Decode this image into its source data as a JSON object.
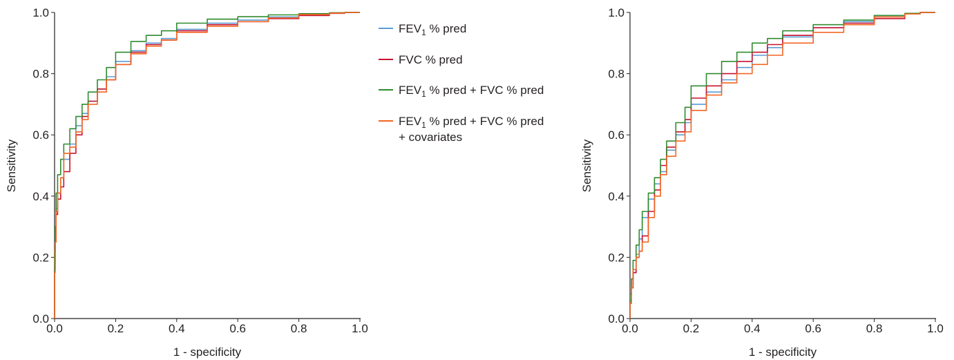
{
  "legend": {
    "items": [
      {
        "color": "#5b9bd5",
        "parts": [
          {
            "t": "FEV"
          },
          {
            "t": "1",
            "sub": true
          },
          {
            "t": " % pred"
          }
        ]
      },
      {
        "color": "#c8102e",
        "parts": [
          {
            "t": "FVC % pred"
          }
        ]
      },
      {
        "color": "#2e8b2e",
        "parts": [
          {
            "t": "FEV"
          },
          {
            "t": "1",
            "sub": true
          },
          {
            "t": " % pred + FVC % pred"
          }
        ]
      },
      {
        "color": "#f26522",
        "parts": [
          {
            "t": "FEV"
          },
          {
            "t": "1",
            "sub": true
          },
          {
            "t": " % pred + FVC % pred"
          }
        ],
        "line2": "+ covariates"
      }
    ]
  },
  "chart_data": [
    {
      "type": "line",
      "xlabel": "1 - specificity",
      "ylabel": "Sensitivity",
      "xlim": [
        0,
        1
      ],
      "ylim": [
        0,
        1
      ],
      "xticks": [
        "0.0",
        "0.2",
        "0.4",
        "0.6",
        "0.8",
        "1.0"
      ],
      "yticks": [
        "0.0",
        "0.2",
        "0.4",
        "0.6",
        "0.8",
        "1.0"
      ],
      "grid": false,
      "legend_position": "right",
      "series": [
        {
          "name": "FEV1 % pred",
          "color": "#5b9bd5",
          "x": [
            0,
            0.002,
            0.005,
            0.01,
            0.02,
            0.03,
            0.05,
            0.07,
            0.09,
            0.11,
            0.14,
            0.17,
            0.2,
            0.25,
            0.3,
            0.35,
            0.4,
            0.5,
            0.6,
            0.7,
            0.8,
            0.9,
            0.95,
            1.0
          ],
          "y": [
            0,
            0.18,
            0.28,
            0.36,
            0.41,
            0.46,
            0.52,
            0.57,
            0.63,
            0.67,
            0.71,
            0.75,
            0.79,
            0.84,
            0.875,
            0.9,
            0.915,
            0.945,
            0.965,
            0.975,
            0.985,
            0.993,
            0.998,
            1.0
          ]
        },
        {
          "name": "FVC % pred",
          "color": "#c8102e",
          "x": [
            0,
            0.002,
            0.005,
            0.01,
            0.02,
            0.03,
            0.05,
            0.07,
            0.09,
            0.11,
            0.14,
            0.17,
            0.2,
            0.25,
            0.3,
            0.35,
            0.4,
            0.5,
            0.6,
            0.7,
            0.8,
            0.9,
            0.95,
            1.0
          ],
          "y": [
            0,
            0.16,
            0.26,
            0.34,
            0.39,
            0.43,
            0.48,
            0.54,
            0.6,
            0.66,
            0.71,
            0.75,
            0.78,
            0.83,
            0.87,
            0.895,
            0.91,
            0.94,
            0.96,
            0.97,
            0.98,
            0.99,
            0.997,
            1.0
          ]
        },
        {
          "name": "FEV1 % pred + FVC % pred",
          "color": "#2e8b2e",
          "x": [
            0,
            0.002,
            0.005,
            0.01,
            0.02,
            0.03,
            0.05,
            0.07,
            0.09,
            0.11,
            0.14,
            0.17,
            0.2,
            0.25,
            0.3,
            0.35,
            0.4,
            0.5,
            0.6,
            0.7,
            0.8,
            0.9,
            0.95,
            1.0
          ],
          "y": [
            0,
            0.22,
            0.3,
            0.41,
            0.47,
            0.52,
            0.57,
            0.62,
            0.66,
            0.7,
            0.74,
            0.78,
            0.82,
            0.87,
            0.905,
            0.925,
            0.94,
            0.965,
            0.978,
            0.986,
            0.992,
            0.996,
            0.999,
            1.0
          ]
        },
        {
          "name": "FEV1 % pred + FVC % pred + covariates",
          "color": "#f26522",
          "x": [
            0,
            0.002,
            0.005,
            0.01,
            0.02,
            0.03,
            0.05,
            0.07,
            0.09,
            0.11,
            0.14,
            0.17,
            0.2,
            0.25,
            0.3,
            0.35,
            0.4,
            0.5,
            0.6,
            0.7,
            0.8,
            0.9,
            0.95,
            1.0
          ],
          "y": [
            0,
            0.15,
            0.25,
            0.35,
            0.41,
            0.46,
            0.54,
            0.56,
            0.61,
            0.65,
            0.7,
            0.74,
            0.78,
            0.83,
            0.865,
            0.89,
            0.91,
            0.935,
            0.955,
            0.97,
            0.982,
            0.993,
            0.998,
            1.0
          ]
        }
      ]
    },
    {
      "type": "line",
      "xlabel": "1 - specificity",
      "ylabel": "Sensitivity",
      "xlim": [
        0,
        1
      ],
      "ylim": [
        0,
        1
      ],
      "xticks": [
        "0.0",
        "0.2",
        "0.4",
        "0.6",
        "0.8",
        "1.0"
      ],
      "yticks": [
        "0.0",
        "0.2",
        "0.4",
        "0.6",
        "0.8",
        "1.0"
      ],
      "grid": false,
      "series": [
        {
          "name": "FEV1 % pred",
          "color": "#5b9bd5",
          "x": [
            0,
            0.005,
            0.01,
            0.02,
            0.03,
            0.04,
            0.06,
            0.08,
            0.1,
            0.12,
            0.15,
            0.18,
            0.2,
            0.25,
            0.3,
            0.35,
            0.4,
            0.45,
            0.5,
            0.6,
            0.7,
            0.8,
            0.9,
            0.95,
            1.0
          ],
          "y": [
            0,
            0.06,
            0.1,
            0.15,
            0.21,
            0.26,
            0.33,
            0.39,
            0.44,
            0.48,
            0.55,
            0.6,
            0.64,
            0.7,
            0.74,
            0.78,
            0.82,
            0.86,
            0.885,
            0.92,
            0.95,
            0.97,
            0.99,
            0.997,
            1.0
          ]
        },
        {
          "name": "FVC % pred",
          "color": "#c8102e",
          "x": [
            0,
            0.005,
            0.01,
            0.02,
            0.03,
            0.04,
            0.06,
            0.08,
            0.1,
            0.12,
            0.15,
            0.18,
            0.2,
            0.25,
            0.3,
            0.35,
            0.4,
            0.45,
            0.5,
            0.6,
            0.7,
            0.8,
            0.9,
            0.95,
            1.0
          ],
          "y": [
            0,
            0.05,
            0.1,
            0.15,
            0.2,
            0.22,
            0.27,
            0.35,
            0.42,
            0.5,
            0.56,
            0.61,
            0.65,
            0.72,
            0.76,
            0.8,
            0.84,
            0.87,
            0.895,
            0.925,
            0.95,
            0.965,
            0.98,
            0.995,
            1.0
          ]
        },
        {
          "name": "FEV1 % pred + FVC % pred",
          "color": "#2e8b2e",
          "x": [
            0,
            0.005,
            0.01,
            0.02,
            0.03,
            0.04,
            0.06,
            0.08,
            0.1,
            0.12,
            0.15,
            0.18,
            0.2,
            0.25,
            0.3,
            0.35,
            0.4,
            0.45,
            0.5,
            0.6,
            0.7,
            0.8,
            0.9,
            0.95,
            1.0
          ],
          "y": [
            0,
            0.08,
            0.13,
            0.19,
            0.24,
            0.29,
            0.35,
            0.41,
            0.46,
            0.52,
            0.58,
            0.64,
            0.69,
            0.76,
            0.8,
            0.84,
            0.87,
            0.9,
            0.915,
            0.94,
            0.96,
            0.975,
            0.99,
            0.997,
            1.0
          ]
        },
        {
          "name": "FEV1 % pred + FVC % pred + covariates",
          "color": "#f26522",
          "x": [
            0,
            0.005,
            0.01,
            0.02,
            0.03,
            0.04,
            0.06,
            0.08,
            0.1,
            0.12,
            0.15,
            0.18,
            0.2,
            0.25,
            0.3,
            0.35,
            0.4,
            0.45,
            0.5,
            0.6,
            0.7,
            0.8,
            0.9,
            0.95,
            1.0
          ],
          "y": [
            0,
            0.05,
            0.1,
            0.16,
            0.2,
            0.22,
            0.25,
            0.33,
            0.4,
            0.47,
            0.53,
            0.58,
            0.61,
            0.68,
            0.73,
            0.77,
            0.8,
            0.83,
            0.86,
            0.9,
            0.935,
            0.96,
            0.985,
            0.995,
            1.0
          ]
        }
      ]
    }
  ]
}
